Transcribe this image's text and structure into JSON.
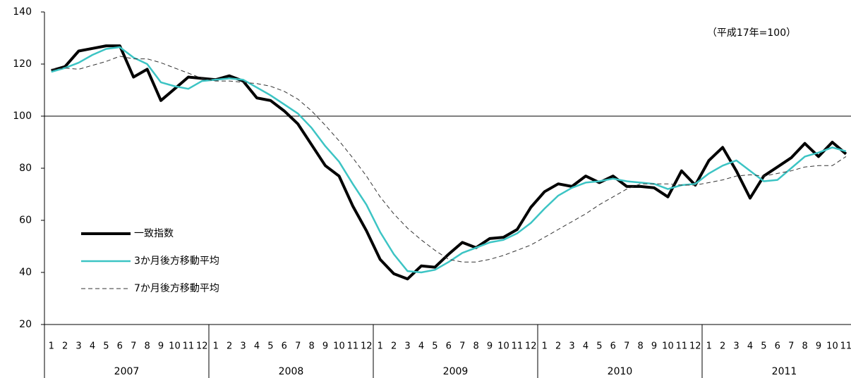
{
  "chart_data": {
    "type": "line",
    "annotation": "（平成17年=100）",
    "categories": [
      "1",
      "2",
      "3",
      "4",
      "5",
      "6",
      "7",
      "8",
      "9",
      "10",
      "11",
      "12",
      "1",
      "2",
      "3",
      "4",
      "5",
      "6",
      "7",
      "8",
      "9",
      "10",
      "11",
      "12",
      "1",
      "2",
      "3",
      "4",
      "5",
      "6",
      "7",
      "8",
      "9",
      "10",
      "11",
      "12",
      "1",
      "2",
      "3",
      "4",
      "5",
      "6",
      "7",
      "8",
      "9",
      "10",
      "11",
      "12",
      "1",
      "2",
      "3",
      "4",
      "5",
      "6",
      "7",
      "8",
      "9",
      "10",
      "11"
    ],
    "years": [
      "2007",
      "2008",
      "2009",
      "2010",
      "2011"
    ],
    "ylim": [
      20,
      140
    ],
    "yticks": [
      20,
      40,
      60,
      80,
      100,
      120,
      140
    ],
    "reference_line": 100,
    "series": [
      {
        "name": "一致指数",
        "color": "#000000",
        "line_style": "solid",
        "values": [
          117.5,
          119,
          125,
          126,
          127,
          127,
          115,
          118,
          106,
          110.5,
          115,
          114.5,
          114,
          115.5,
          113.5,
          107,
          106,
          102,
          97,
          89,
          81,
          77,
          65.5,
          56,
          45,
          39.5,
          37.5,
          42.5,
          42,
          47,
          51.5,
          49.5,
          53,
          53.5,
          56.5,
          65,
          71,
          74,
          73,
          77,
          74.5,
          77,
          73,
          73,
          72.5,
          69,
          79,
          73.5,
          83,
          88,
          79,
          68.5,
          77,
          80.5,
          84,
          89.5,
          84.5,
          90,
          85.5
        ]
      },
      {
        "name": "3か月後方移動平均",
        "color": "#3cc4c4",
        "line_style": "solid",
        "values": [
          117,
          118.5,
          120.5,
          123.5,
          125.8,
          126.5,
          122.5,
          120,
          113,
          111.5,
          110.5,
          113.5,
          114,
          114.5,
          114,
          111,
          108,
          104.5,
          101,
          95.5,
          88.5,
          82.5,
          74,
          66,
          55.5,
          47,
          40.5,
          40,
          41,
          44,
          47.5,
          49.5,
          51.5,
          52.5,
          55,
          59,
          64.5,
          69.5,
          72.5,
          74.5,
          75,
          76,
          75,
          74.5,
          74,
          72,
          73.5,
          74,
          78,
          81,
          83,
          79,
          75,
          75.5,
          80,
          84.5,
          86,
          88,
          86.5
        ]
      },
      {
        "name": "7か月後方移動平均",
        "color": "#333333",
        "line_style": "dashed",
        "values": [
          118,
          118.5,
          118,
          119.5,
          121,
          123,
          122,
          122,
          120.5,
          118.5,
          116.5,
          114.5,
          113.5,
          113.5,
          113,
          112.5,
          111.5,
          109.5,
          106.5,
          102,
          96.5,
          90.5,
          84,
          77,
          69,
          62.5,
          57,
          52.5,
          48.5,
          45,
          44,
          44,
          45,
          46.5,
          48.5,
          50.5,
          53.5,
          56.5,
          59.5,
          62.5,
          66,
          69,
          72,
          74,
          74,
          74,
          73.5,
          73.5,
          74.5,
          75.5,
          77,
          77.5,
          77,
          78,
          79,
          80.5,
          81,
          81,
          84.5
        ]
      }
    ]
  }
}
